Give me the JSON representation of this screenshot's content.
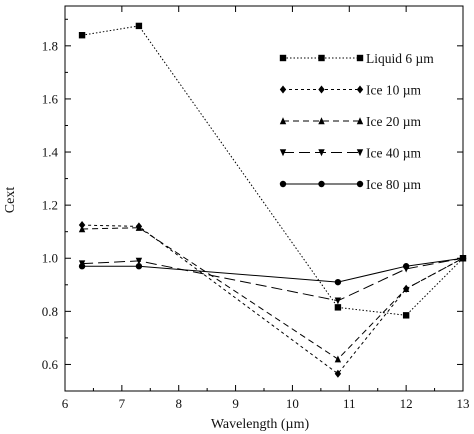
{
  "chart_data": {
    "type": "line",
    "title": "",
    "xlabel": "Wavelength (µm)",
    "ylabel": "Cext",
    "xlim": [
      6,
      13
    ],
    "ylim": [
      0.5,
      1.95
    ],
    "xticks": [
      6,
      7,
      8,
      9,
      10,
      11,
      12,
      13
    ],
    "yticks": [
      0.6,
      0.8,
      1.0,
      1.2,
      1.4,
      1.6,
      1.8
    ],
    "grid": false,
    "legend_position": "top-right",
    "series": [
      {
        "name": "Liquid 6 µm",
        "marker": "square",
        "dash": "1.5,2",
        "x": [
          6.3,
          7.3,
          10.8,
          12.0,
          13.0
        ],
        "y": [
          1.84,
          1.875,
          0.815,
          0.785,
          1.0
        ]
      },
      {
        "name": "Ice 10 µm",
        "marker": "diamond",
        "dash": "3,3",
        "x": [
          6.3,
          7.3,
          10.8,
          12.0,
          13.0
        ],
        "y": [
          1.125,
          1.12,
          0.565,
          0.885,
          1.0
        ]
      },
      {
        "name": "Ice 20 µm",
        "marker": "triangle-up",
        "dash": "6,4",
        "x": [
          6.3,
          7.3,
          10.8,
          12.0,
          13.0
        ],
        "y": [
          1.11,
          1.115,
          0.62,
          0.885,
          1.0
        ]
      },
      {
        "name": "Ice 40 µm",
        "marker": "triangle-down",
        "dash": "11,5",
        "x": [
          6.3,
          7.3,
          10.8,
          12.0,
          13.0
        ],
        "y": [
          0.98,
          0.99,
          0.84,
          0.96,
          1.0
        ]
      },
      {
        "name": "Ice 80 µm",
        "marker": "circle",
        "dash": "",
        "x": [
          6.3,
          7.3,
          10.8,
          12.0,
          13.0
        ],
        "y": [
          0.97,
          0.97,
          0.91,
          0.97,
          1.0
        ]
      }
    ]
  }
}
